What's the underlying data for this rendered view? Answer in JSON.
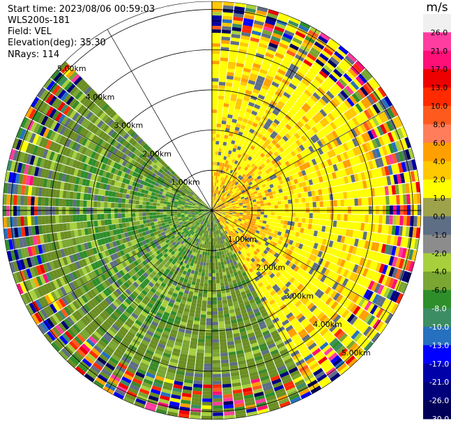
{
  "info": {
    "start_time": "Start time: 2023/08/06 00:59:03",
    "device": "WLS200s-181",
    "field": "Field: VEL",
    "elevation": "Elevation(deg): 35.30",
    "nrays": "NRays: 114"
  },
  "chart_data": {
    "type": "heatmap",
    "subtype": "polar PPI scan",
    "field": "VEL",
    "unit": "m/s",
    "elevation_deg": 35.3,
    "nrays": 114,
    "range_rings": [
      "1.00km",
      "2.00km",
      "3.00km",
      "4.00km",
      "5.00km"
    ],
    "range_ring_values_km": [
      1,
      2,
      3,
      4,
      5
    ],
    "max_range_km": 5.2,
    "missing_sector_azimuth_deg": [
      315,
      360
    ],
    "colorbar": {
      "unit_label": "m/s",
      "tick_labels": [
        "26.0",
        "21.0",
        "17.0",
        "13.0",
        "10.0",
        "8.0",
        "6.0",
        "4.0",
        "2.0",
        "1.0",
        "0.0",
        "-1.0",
        "-2.0",
        "-4.0",
        "-6.0",
        "-8.0",
        "-10.0",
        "-13.0",
        "-17.0",
        "-21.0",
        "-26.0",
        "-30.0"
      ],
      "colors": [
        "#f0f0f0",
        "#ff3c9f",
        "#ff0f78",
        "#ee0000",
        "#ff2a00",
        "#ff5a1e",
        "#ff7d5a",
        "#ffa000",
        "#ffc800",
        "#ffff00",
        "#9ea24a",
        "#5e6e84",
        "#8c8c8c",
        "#a8d03c",
        "#7aa632",
        "#2e8f2a",
        "#3c8c64",
        "#2670c0",
        "#0000ff",
        "#0000a8",
        "#00007a",
        "#000058"
      ]
    },
    "pattern_summary": {
      "north_to_east_sector": "positive velocities 2–4 m/s (yellow/orange)",
      "south_to_west_sector": "negative velocities -2 to -6 m/s (olive/green)",
      "outer_ranges": "noisy mixed values"
    }
  }
}
